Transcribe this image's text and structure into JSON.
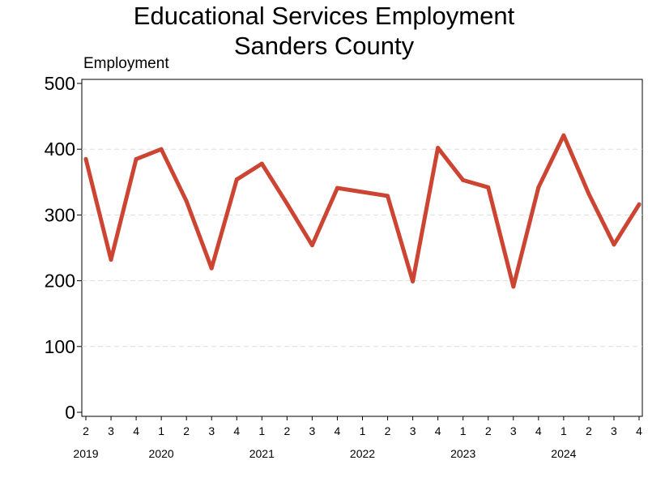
{
  "chart_data": {
    "type": "line",
    "title": "Educational Services Employment",
    "subtitle": "Sanders County",
    "ylabel": "Employment",
    "xlabel": "",
    "ylim": [
      0,
      500
    ],
    "yticks": [
      0,
      100,
      200,
      300,
      400,
      500
    ],
    "grid": "horizontal dashed",
    "line_color": "#cc4533",
    "quarters": [
      "2",
      "3",
      "4",
      "1",
      "2",
      "3",
      "4",
      "1",
      "2",
      "3",
      "4",
      "1",
      "2",
      "3",
      "4",
      "1",
      "2",
      "3",
      "4",
      "1",
      "2",
      "3",
      "4"
    ],
    "years": [
      {
        "label": "2019",
        "quarter_index": 0
      },
      {
        "label": "2020",
        "quarter_index": 3
      },
      {
        "label": "2021",
        "quarter_index": 7
      },
      {
        "label": "2022",
        "quarter_index": 11
      },
      {
        "label": "2023",
        "quarter_index": 15
      },
      {
        "label": "2024",
        "quarter_index": 19
      }
    ],
    "series": [
      {
        "values": [
          385,
          232,
          385,
          400,
          321,
          219,
          354,
          378,
          317,
          254,
          341,
          335,
          329,
          199,
          402,
          353,
          342,
          191,
          342,
          421,
          332,
          255,
          316
        ]
      }
    ]
  }
}
